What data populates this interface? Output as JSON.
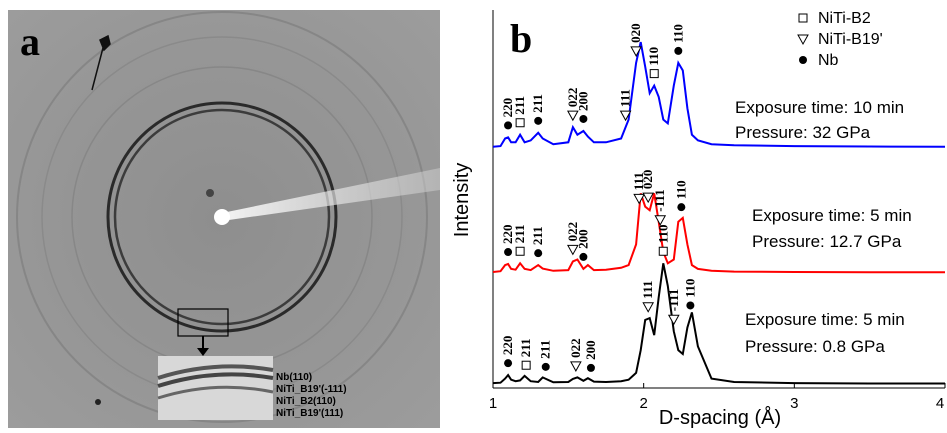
{
  "image_panel": {
    "label": "a",
    "inset_labels": [
      "Nb(110)",
      "NiTi_B19'(-111)",
      "NiTi_B2(110)",
      "NiTi_B19'(111)"
    ]
  },
  "chart_data": {
    "type": "line",
    "panel_label": "b",
    "x_label": "D-spacing (Å)",
    "y_label": "Intensity",
    "xlim": [
      1,
      4
    ],
    "xticks": [
      1,
      2,
      3,
      4
    ],
    "ylim": [
      0,
      100
    ],
    "legend": [
      "NiTi-B2",
      "NiTi-B19'",
      "Nb"
    ],
    "x": [
      1.0,
      1.05,
      1.08,
      1.1,
      1.12,
      1.15,
      1.18,
      1.21,
      1.25,
      1.3,
      1.33,
      1.4,
      1.5,
      1.53,
      1.56,
      1.6,
      1.63,
      1.67,
      1.75,
      1.85,
      1.9,
      1.95,
      1.98,
      2.01,
      2.04,
      2.07,
      2.1,
      2.13,
      2.16,
      2.2,
      2.23,
      2.26,
      2.29,
      2.32,
      2.36,
      2.45,
      2.6,
      3.0,
      3.5,
      4.0
    ],
    "series": [
      {
        "color": "#0000ff",
        "annotation": [
          "Exposure time: 10 min",
          "Pressure: 32 GPa"
        ],
        "peak_labels": [
          "220",
          "211",
          "211",
          "022",
          "200",
          "111",
          "020",
          "110",
          "110"
        ],
        "values": [
          63.8,
          64,
          66,
          66.3,
          65,
          65,
          67,
          65,
          65.5,
          67.5,
          66,
          64.5,
          65,
          69,
          67,
          68,
          66.5,
          65,
          65,
          66,
          71,
          86,
          91.5,
          85,
          78,
          80,
          77,
          71,
          70,
          80,
          86,
          84,
          74,
          67,
          65.5,
          64.5,
          64.2,
          64,
          63.9,
          63.8
        ]
      },
      {
        "color": "#ff0000",
        "annotation": [
          "Exposure time: 5 min",
          "Pressure: 12.7 GPa"
        ],
        "peak_labels": [
          "220",
          "211",
          "211",
          "022",
          "200",
          "111",
          "020",
          "-111",
          "110"
        ],
        "values": [
          30.7,
          30.9,
          32.5,
          32.8,
          31.5,
          31.3,
          33,
          31.5,
          31.2,
          32.5,
          31.6,
          31,
          31.2,
          33.5,
          34,
          31.5,
          32.5,
          31.2,
          31.3,
          31.8,
          32.5,
          38,
          51.5,
          48,
          47,
          51.5,
          44,
          36,
          33,
          34,
          44,
          45,
          38,
          32.5,
          31.5,
          31,
          30.8,
          30.7,
          30.6,
          30.6
        ]
      },
      {
        "color": "#000000",
        "annotation": [
          "Exposure time: 5 min",
          "Pressure: 0.8 GPa"
        ],
        "peak_labels": [
          "220",
          "211",
          "211",
          "022",
          "200",
          "111",
          "110",
          "-111",
          "110"
        ],
        "values": [
          1.3,
          1.4,
          2.5,
          3.4,
          2.2,
          1.8,
          2.0,
          3.2,
          1.8,
          1.6,
          2.8,
          1.5,
          1.6,
          2.4,
          2.8,
          1.9,
          2.6,
          1.7,
          1.6,
          1.8,
          2.2,
          4,
          10,
          18,
          18.5,
          14,
          24,
          33,
          27,
          15,
          10,
          9,
          16,
          20,
          11,
          2.5,
          1.6,
          1.3,
          1.2,
          1.2
        ]
      }
    ]
  }
}
